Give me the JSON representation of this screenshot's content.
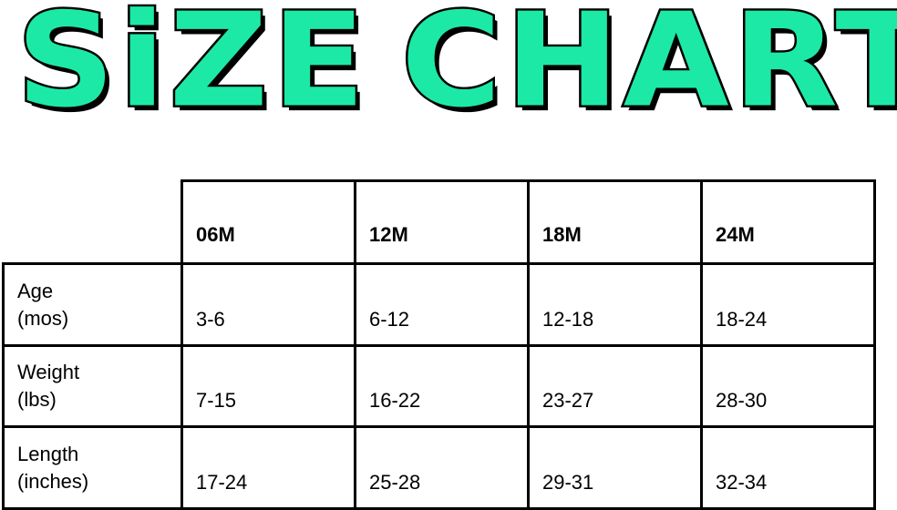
{
  "title": {
    "word1": "SiZE",
    "word2": "CHART",
    "color": "#1de9a6"
  },
  "table": {
    "columns": [
      "06M",
      "12M",
      "18M",
      "24M"
    ],
    "rows": [
      {
        "label1": "Age",
        "label2": "(mos)",
        "values": [
          "3-6",
          "6-12",
          "12-18",
          "18-24"
        ]
      },
      {
        "label1": "Weight",
        "label2": "(lbs)",
        "values": [
          "7-15",
          "16-22",
          "23-27",
          "28-30"
        ]
      },
      {
        "label1": "Length",
        "label2": "(inches)",
        "values": [
          "17-24",
          "25-28",
          "29-31",
          "32-34"
        ]
      }
    ]
  }
}
